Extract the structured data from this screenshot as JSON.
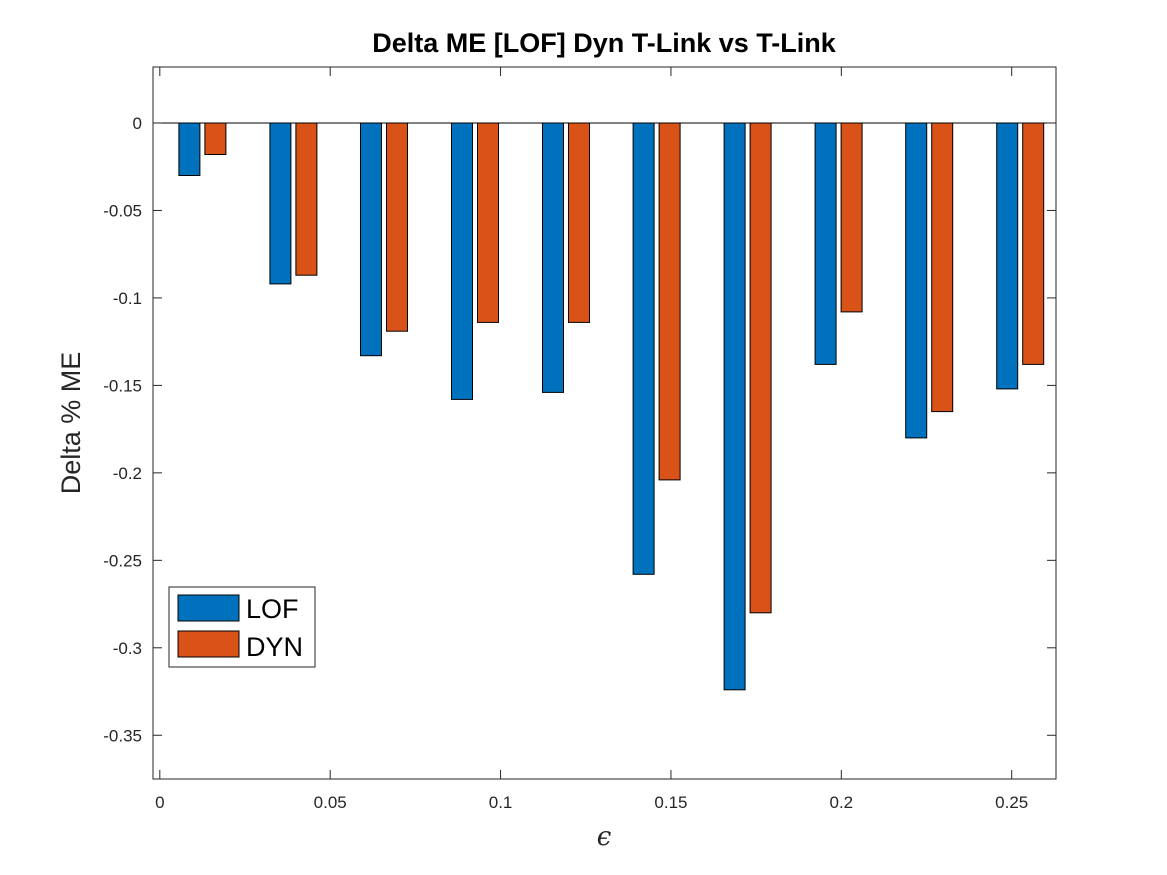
{
  "chart_data": {
    "type": "bar",
    "title": "Delta ME [LOF] Dyn T-Link vs T-Link",
    "xlabel": "ϵ",
    "ylabel": "Delta % ME",
    "x": [
      0.0125,
      0.0392,
      0.0658,
      0.0925,
      0.1192,
      0.1458,
      0.1725,
      0.1992,
      0.2258,
      0.2525
    ],
    "xlim": [
      -0.002,
      0.263
    ],
    "ylim": [
      -0.375,
      0.032
    ],
    "xticks": [
      0,
      0.05,
      0.1,
      0.15,
      0.2,
      0.25
    ],
    "xtick_labels": [
      "0",
      "0.05",
      "0.1",
      "0.15",
      "0.2",
      "0.25"
    ],
    "yticks": [
      0,
      -0.05,
      -0.1,
      -0.15,
      -0.2,
      -0.25,
      -0.3,
      -0.35
    ],
    "ytick_labels": [
      "0",
      "-0.05",
      "-0.1",
      "-0.15",
      "-0.2",
      "-0.25",
      "-0.3",
      "-0.35"
    ],
    "series": [
      {
        "name": "LOF",
        "color": "#0072BD",
        "values": [
          -0.03,
          -0.092,
          -0.133,
          -0.158,
          -0.154,
          -0.258,
          -0.324,
          -0.138,
          -0.18,
          -0.152
        ]
      },
      {
        "name": "DYN",
        "color": "#D95319",
        "values": [
          -0.018,
          -0.087,
          -0.119,
          -0.114,
          -0.114,
          -0.204,
          -0.28,
          -0.108,
          -0.165,
          -0.138
        ]
      }
    ],
    "grid": false,
    "legend_position": "bottom-left"
  }
}
